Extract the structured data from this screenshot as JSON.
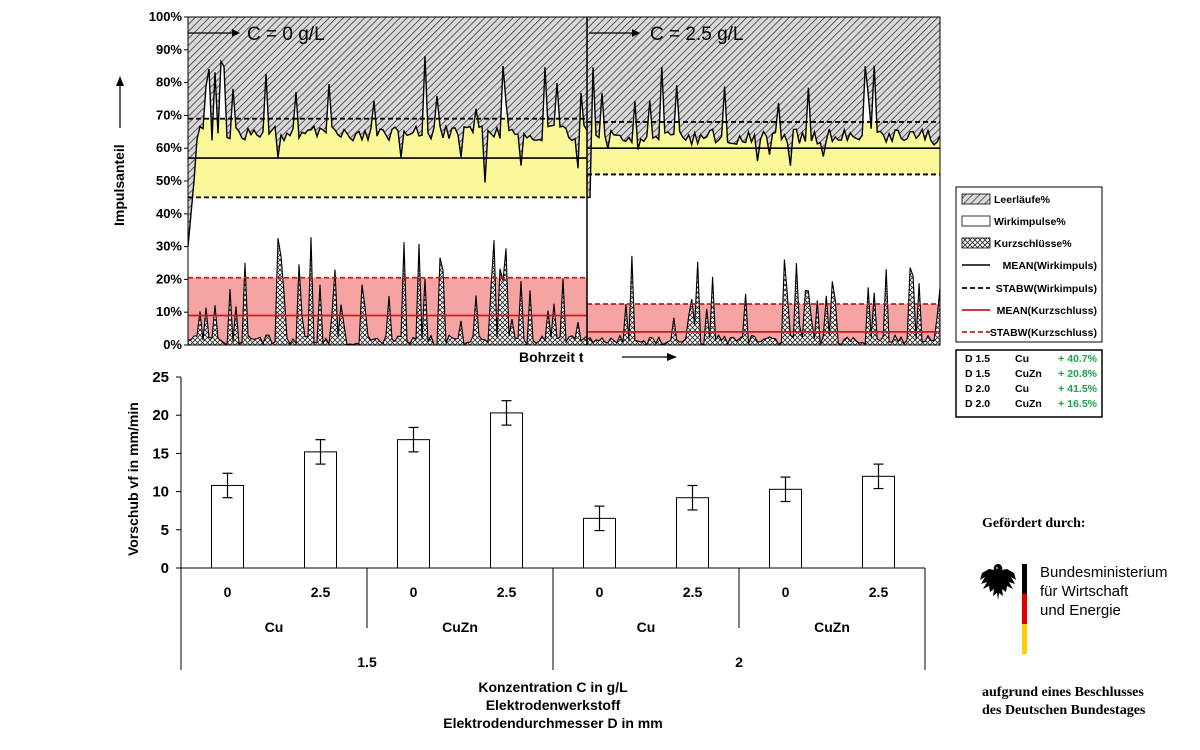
{
  "chart_data": [
    {
      "type": "area",
      "ylabel": "Impulsanteil",
      "xlabel": "Bohrzeit t",
      "y_ticks": [
        "0%",
        "10%",
        "20%",
        "30%",
        "40%",
        "50%",
        "60%",
        "70%",
        "80%",
        "90%",
        "100%"
      ],
      "ylim": [
        0,
        100
      ],
      "grid": false,
      "legend_position": "right",
      "segments": [
        {
          "label": "C = 0 g/L",
          "mean_wirkimpuls": 57,
          "stabw_wirkimpuls": 45,
          "mean_kurzschluss": 9,
          "stabw_kurzschluss": 20.5,
          "band_wirkimpuls": [
            45,
            69
          ]
        },
        {
          "label": "C = 2.5 g/L",
          "mean_wirkimpuls": 60,
          "stabw_wirkimpuls": 52,
          "mean_kurzschluss": 4,
          "stabw_kurzschluss": 12.5,
          "band_wirkimpuls": [
            52,
            68
          ]
        }
      ],
      "legend": [
        "Leerläufe%",
        "Wirkimpulse%",
        "Kurzschlüsse%",
        "MEAN(Wirkimpuls)",
        "STABW(Wirkimpuls)",
        "MEAN(Kurzschluss)",
        "STABW(Kurzschluss)"
      ],
      "colors": {
        "band_yellow": "#fbf89a",
        "band_red": "#f5a3a3",
        "mean_red": "#c0201e"
      }
    },
    {
      "type": "bar",
      "ylabel": "Vorschub vf in mm/min",
      "ylim": [
        0,
        25
      ],
      "y_ticks": [
        "0",
        "5",
        "10",
        "15",
        "20",
        "25"
      ],
      "categories": [
        "0",
        "2.5",
        "0",
        "2.5",
        "0",
        "2.5",
        "0",
        "2.5"
      ],
      "values": [
        10.8,
        15.2,
        16.8,
        20.3,
        6.5,
        9.2,
        10.3,
        12.0
      ],
      "errors": [
        1.6,
        1.6,
        1.6,
        1.6,
        1.6,
        1.6,
        1.6,
        1.6
      ],
      "group_level_1": [
        "Cu",
        "CuZn",
        "Cu",
        "CuZn"
      ],
      "group_level_2": [
        "1.5",
        "2"
      ],
      "xlabel_lines": [
        "Konzentration C in g/L",
        "Elektrodenwerkstoff",
        "Elektrodendurchmesser D in mm"
      ]
    }
  ],
  "improvement_table": [
    {
      "d": "D 1.5",
      "mat": "Cu",
      "val": "+ 40.7%"
    },
    {
      "d": "D 1.5",
      "mat": "CuZn",
      "val": "+ 20.8%"
    },
    {
      "d": "D 2.0",
      "mat": "Cu",
      "val": "+ 41.5%"
    },
    {
      "d": "D 2.0",
      "mat": "CuZn",
      "val": "+ 16.5%"
    }
  ],
  "funding": {
    "header": "Gefördert durch:",
    "ministry_lines": [
      "Bundesministerium",
      "für Wirtschaft",
      "und Energie"
    ],
    "footer_lines": [
      "aufgrund eines Beschlusses",
      "des Deutschen Bundestages"
    ]
  }
}
